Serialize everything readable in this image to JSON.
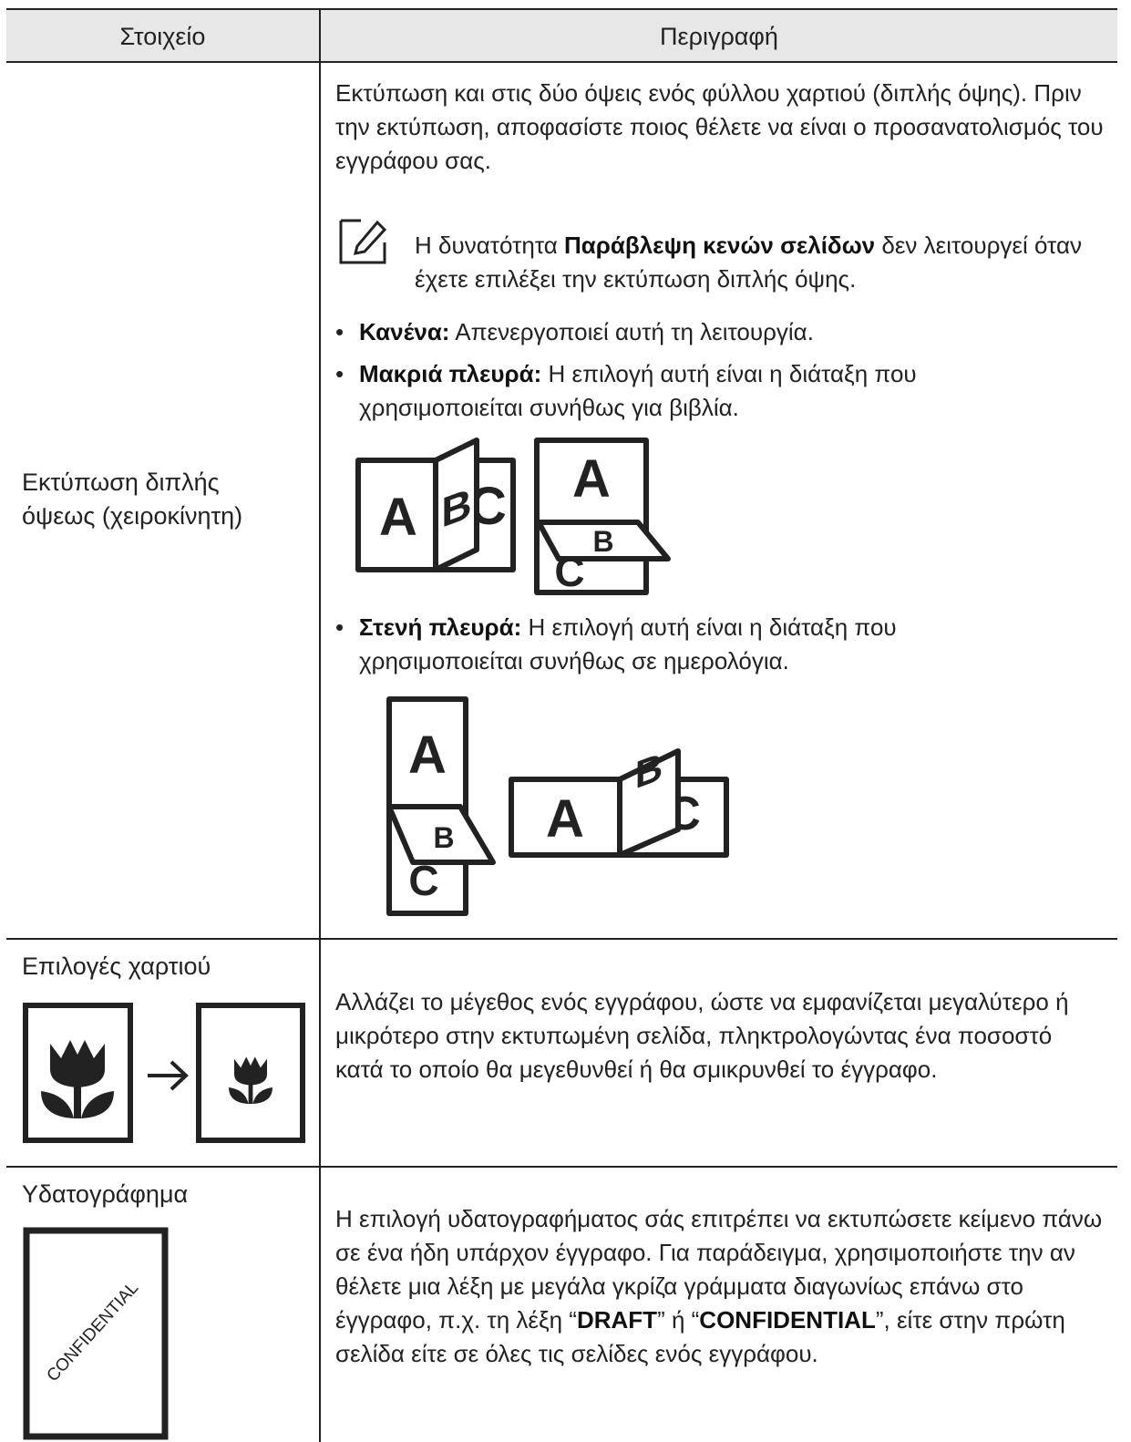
{
  "table": {
    "header": [
      "Στοιχείο",
      "Περιγραφή"
    ],
    "rows": [
      {
        "item": "Εκτύπωση διπλής όψεως (χειροκίνητη)",
        "intro": "Εκτύπωση και στις δύο όψεις ενός φύλλου χαρτιού (διπλής όψης). Πριν την εκτύπωση, αποφασίστε ποιος θέλετε να είναι ο προσανατολισμός του εγγράφου σας.",
        "note": [
          "Η δυνατότητα ",
          "Παράβλεψη κενών σελίδων",
          " δεν λειτουργεί όταν έχετε επιλέξει την εκτύπωση διπλής όψης."
        ],
        "options": [
          {
            "term": "Κανένα:",
            "text": "Απενεργοποιεί αυτή τη λειτουργία."
          },
          {
            "term": "Μακριά πλευρά:",
            "text": "Η επιλογή αυτή είναι η διάταξη που χρησιμοποιείται συνήθως για βιβλία.",
            "figure": [
              "A",
              "B",
              "C",
              "A",
              "B",
              "C"
            ]
          },
          {
            "term": "Στενή πλευρά:",
            "text": "Η επιλογή αυτή είναι η διάταξη που χρησιμοποιείται συνήθως σε ημερολόγια.",
            "figure": [
              "A",
              "B",
              "C",
              "A",
              "B",
              "C"
            ]
          }
        ]
      },
      {
        "item": "Επιλογές χαρτιού",
        "description": "Αλλάζει το μέγεθος ενός εγγράφου, ώστε να εμφανίζεται μεγαλύτερο ή μικρότερο στην εκτυπωμένη σελίδα, πληκτρολογώντας ένα ποσοστό κατά το οποίο θα μεγεθυνθεί ή θα σμικρυνθεί το έγγραφο."
      },
      {
        "item": "Υδατογράφημα",
        "icon_text": "CONFIDENTIAL",
        "description": [
          "Η επιλογή υδατογραφήματος σάς επιτρέπει να εκτυπώσετε κείμενο πάνω σε ένα ήδη υπάρχον έγγραφο. Για παράδειγμα, χρησιμοποιήστε την αν θέλετε μια λέξη με μεγάλα γκρίζα γράμματα διαγωνίως επάνω στο έγγραφο, π.χ. τη λέξη “",
          "DRAFT",
          "” ή “",
          "CONFIDENTIAL",
          "”, είτε στην πρώτη σελίδα είτε σε όλες τις σελίδες ενός εγγράφου."
        ]
      }
    ]
  }
}
